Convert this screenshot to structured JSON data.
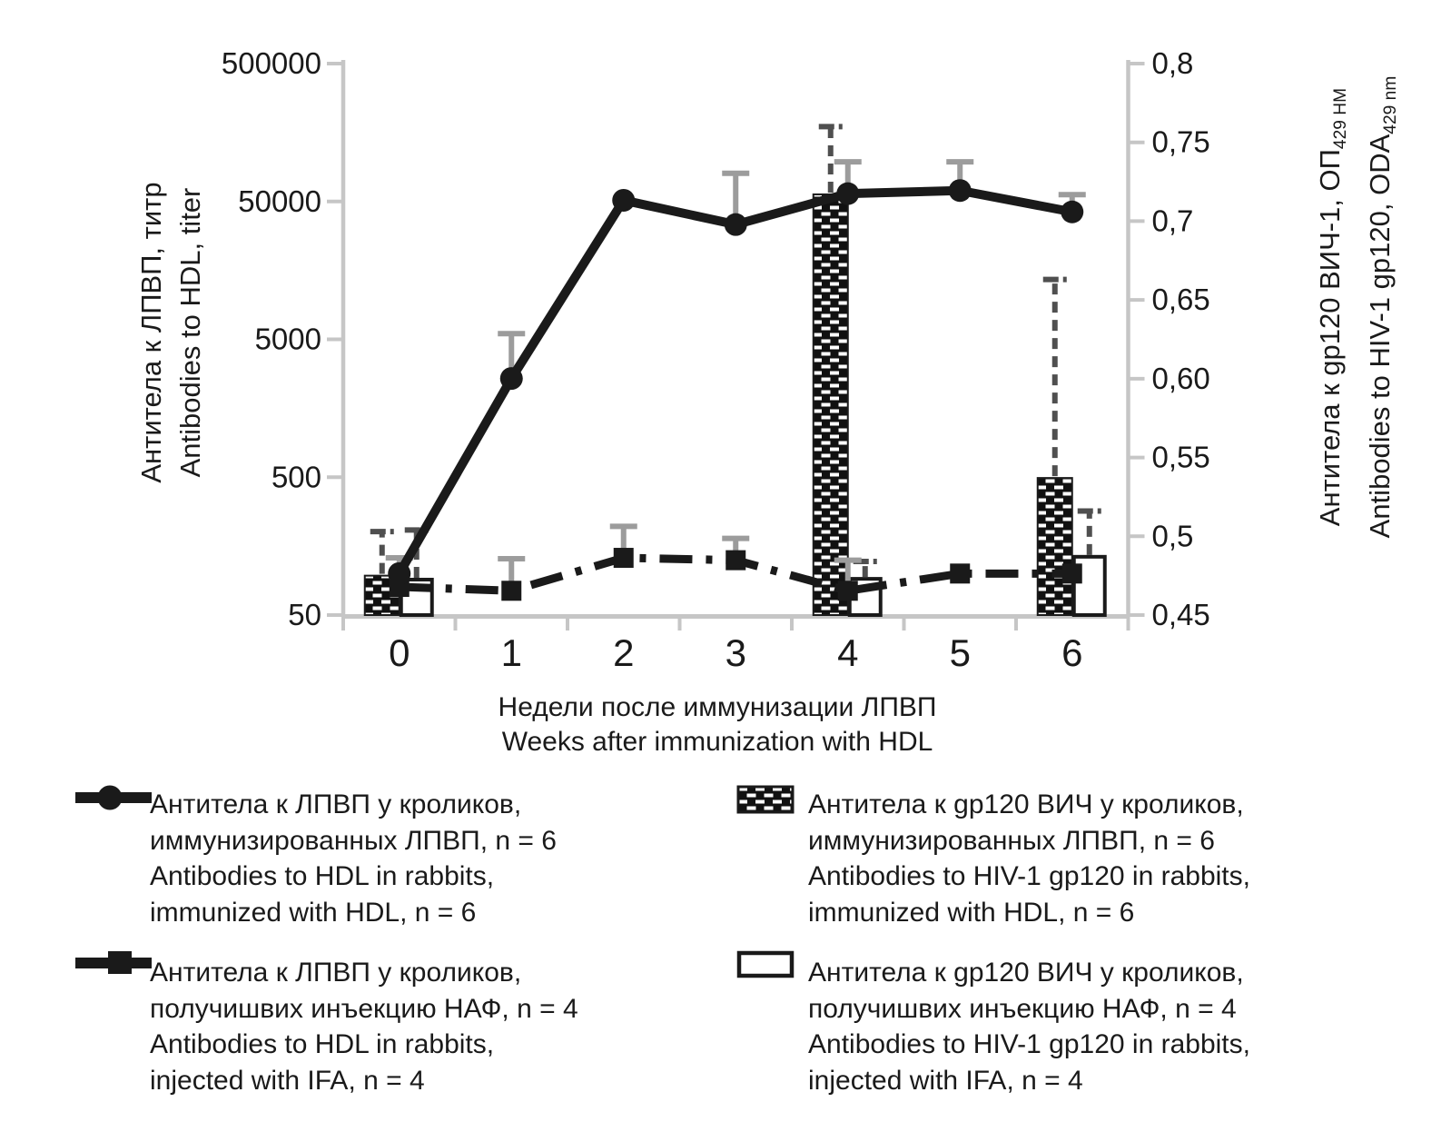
{
  "colors": {
    "ink": "#1a1a1a",
    "axis_gray": "#c6c6c6",
    "err_solid": "#9c9c9c",
    "err_dashed": "#4f4f4f",
    "background": "#ffffff"
  },
  "chart_data": {
    "type": "combo",
    "weeks": [
      0,
      1,
      2,
      3,
      4,
      5,
      6
    ],
    "x_axis": {
      "tick_labels": [
        "0",
        "1",
        "2",
        "3",
        "4",
        "5",
        "6"
      ],
      "title_ru": "Недели после иммунизации ЛПВП",
      "title_en": "Weeks after immunization with HDL"
    },
    "left_axis": {
      "scale": "log",
      "tick_labels": [
        "500000",
        "50000",
        "5000",
        "500",
        "50"
      ],
      "tick_values": [
        500000,
        50000,
        5000,
        500,
        50
      ],
      "range": [
        50,
        500000
      ],
      "title_ru": "Антитела к ЛПВП, титр",
      "title_en": "Antibodies to HDL, titer"
    },
    "right_axis": {
      "scale": "linear",
      "tick_labels": [
        "0,8",
        "0,75",
        "0,7",
        "0,65",
        "0,60",
        "0,55",
        "0,5",
        "0,45"
      ],
      "tick_values": [
        0.8,
        0.75,
        0.7,
        0.65,
        0.6,
        0.55,
        0.5,
        0.45
      ],
      "range": [
        0.45,
        0.8
      ],
      "title_ru_main": "Антитела к gp120 ВИЧ-1, ОП",
      "title_ru_sub": "429 НМ",
      "title_en_main": "Antibodies to HIV-1 gp120, ODA",
      "title_en_sub": "429 nm"
    },
    "series": [
      {
        "name": "Antibodies to HDL in rabbits, immunized with HDL, n = 6",
        "type": "line",
        "axis": "left",
        "marker": "circle",
        "line_style": "solid",
        "values": [
          100,
          2600,
          51000,
          34000,
          57000,
          60000,
          42000
        ],
        "err_top": [
          null,
          5500,
          null,
          80000,
          97000,
          97000,
          56000
        ]
      },
      {
        "name": "Antibodies to HDL in rabbits, injected with IFA, n = 4",
        "type": "line",
        "axis": "left",
        "marker": "square",
        "line_style": "dashdot",
        "values": [
          80,
          75,
          130,
          125,
          75,
          100,
          100
        ],
        "err_top": [
          130,
          128,
          220,
          180,
          125,
          null,
          null
        ]
      },
      {
        "name": "Antibodies to HIV-1 gp120 in rabbits, immunized with HDL, n = 6",
        "type": "bar",
        "axis": "right",
        "fill": "checkered",
        "values": [
          0.475,
          null,
          null,
          null,
          0.717,
          null,
          0.537
        ],
        "err_top": [
          0.503,
          null,
          null,
          null,
          0.76,
          null,
          0.663
        ]
      },
      {
        "name": "Antibodies to HIV-1 gp120 in rabbits, injected with IFA, n = 4",
        "type": "bar",
        "axis": "right",
        "fill": "white",
        "values": [
          0.4725,
          null,
          null,
          null,
          0.473,
          null,
          0.487
        ],
        "err_top": [
          0.504,
          null,
          null,
          null,
          0.484,
          null,
          0.516
        ]
      }
    ]
  },
  "legend": {
    "items": [
      {
        "marker": "line-circle",
        "lines": [
          "Антитела к ЛПВП у кроликов,",
          "иммунизированных ЛПВП, n = 6",
          "Antibodies to HDL in rabbits,",
          "immunized with HDL, n = 6"
        ]
      },
      {
        "marker": "line-square",
        "lines": [
          "Антитела к ЛПВП у кроликов,",
          "получишвих инъекцию НАФ, n = 4",
          "Antibodies to HDL in rabbits,",
          "injected with IFA, n = 4"
        ]
      },
      {
        "marker": "bar-checkered",
        "lines": [
          "Антитела к gp120 ВИЧ у кроликов,",
          "иммунизированных ЛПВП, n = 6",
          "Antibodies to HIV-1 gp120 in rabbits,",
          "immunized with HDL, n = 6"
        ]
      },
      {
        "marker": "bar-white",
        "lines": [
          "Антитела к gp120 ВИЧ у кроликов,",
          "получишвих инъекцию НАФ, n = 4",
          "Antibodies to HIV-1 gp120 in rabbits,",
          "injected with IFA, n = 4"
        ]
      }
    ]
  }
}
